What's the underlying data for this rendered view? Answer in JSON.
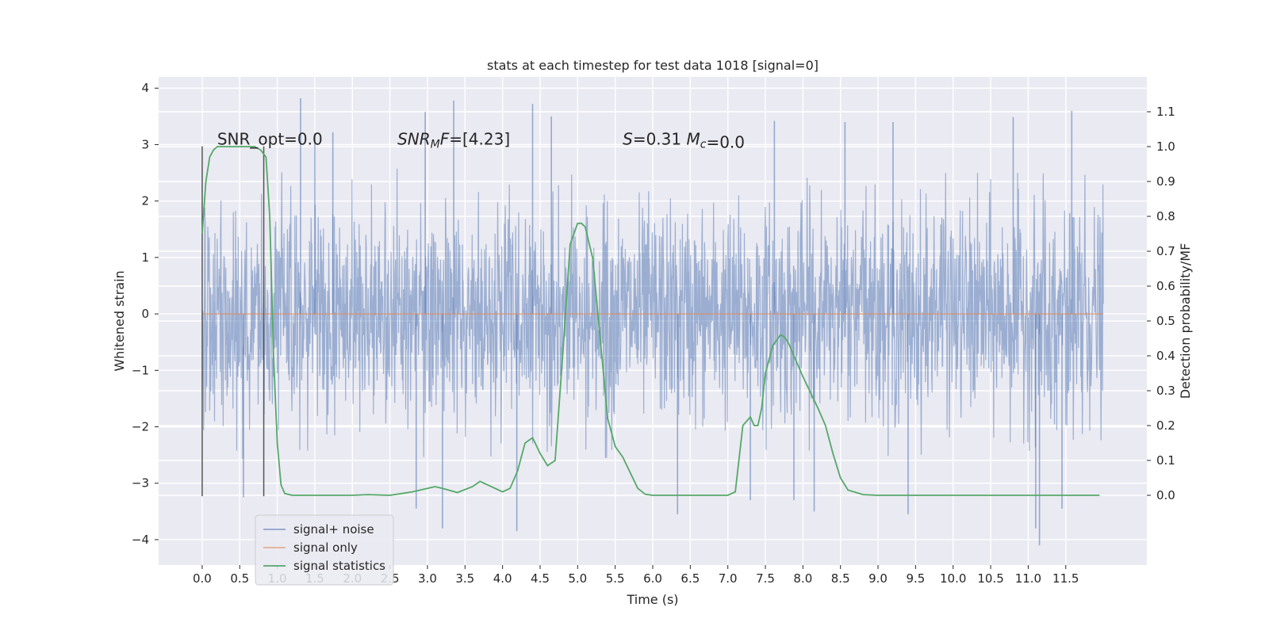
{
  "chart_data": {
    "type": "line",
    "title": "stats at each timestep for test data 1018 [signal=0]",
    "xlabel": "Time (s)",
    "ylabel": "Whitened strain",
    "ylabel_right": "Detection probability/MF",
    "xlim": [
      -0.58,
      12.58
    ],
    "ylim": [
      -4.45,
      4.2
    ],
    "ylim_right": [
      -0.2,
      1.2
    ],
    "x_ticks": [
      0.0,
      0.5,
      1.0,
      1.5,
      2.0,
      2.5,
      3.0,
      3.5,
      4.0,
      4.5,
      5.0,
      5.5,
      6.0,
      6.5,
      7.0,
      7.5,
      8.0,
      8.5,
      9.0,
      9.5,
      10.0,
      10.5,
      11.0,
      11.5
    ],
    "x_tick_labels": [
      "0.0",
      "0.5",
      "1.0",
      "1.5",
      "2.0",
      "2.5",
      "3.0",
      "3.5",
      "4.0",
      "4.5",
      "5.0",
      "5.5",
      "6.0",
      "6.5",
      "7.0",
      "7.5",
      "8.0",
      "8.5",
      "9.0",
      "9.5",
      "10.0",
      "10.5",
      "11.0",
      "11.5"
    ],
    "y_ticks": [
      -4,
      -3,
      -2,
      -1,
      0,
      1,
      2,
      3,
      4
    ],
    "y_tick_labels": [
      "−4",
      "−3",
      "−2",
      "−1",
      "0",
      "1",
      "2",
      "3",
      "4"
    ],
    "y_ticks_right": [
      0.0,
      0.1,
      0.2,
      0.3,
      0.4,
      0.5,
      0.6,
      0.7,
      0.8,
      0.9,
      1.0,
      1.1
    ],
    "y_tick_labels_right": [
      "0.0",
      "0.1",
      "0.2",
      "0.3",
      "0.4",
      "0.5",
      "0.6",
      "0.7",
      "0.8",
      "0.9",
      "1.0",
      "1.1"
    ],
    "grid": true,
    "legend_position": "lower-left",
    "series": [
      {
        "name": "signal+ noise",
        "axis": "left",
        "color": "#4c72b0",
        "x_range": [
          0.0,
          12.0
        ],
        "typical_range": [
          -2.2,
          2.4
        ],
        "peaks": [
          {
            "x": 1.31,
            "y": 3.82
          },
          {
            "x": 1.5,
            "y": 3.2
          },
          {
            "x": 1.74,
            "y": 3.22
          },
          {
            "x": 2.97,
            "y": 3.58
          },
          {
            "x": 3.35,
            "y": 3.78
          },
          {
            "x": 4.4,
            "y": 3.72
          },
          {
            "x": 4.65,
            "y": 3.5
          },
          {
            "x": 7.62,
            "y": 3.42
          },
          {
            "x": 8.56,
            "y": 3.4
          },
          {
            "x": 9.2,
            "y": 3.4
          },
          {
            "x": 10.8,
            "y": 3.49
          },
          {
            "x": 11.58,
            "y": 3.6
          }
        ],
        "troughs": [
          {
            "x": 0.55,
            "y": -3.25
          },
          {
            "x": 2.85,
            "y": -3.45
          },
          {
            "x": 3.2,
            "y": -3.8
          },
          {
            "x": 4.19,
            "y": -3.85
          },
          {
            "x": 6.33,
            "y": -3.55
          },
          {
            "x": 7.3,
            "y": -3.3
          },
          {
            "x": 7.88,
            "y": -3.3
          },
          {
            "x": 8.15,
            "y": -3.5
          },
          {
            "x": 9.4,
            "y": -3.55
          },
          {
            "x": 11.1,
            "y": -3.8
          },
          {
            "x": 11.15,
            "y": -4.1
          },
          {
            "x": 11.45,
            "y": -3.45
          }
        ]
      },
      {
        "name": "signal only",
        "axis": "left",
        "color": "#dd8452",
        "x": [
          0.0,
          12.0
        ],
        "y": [
          0.0,
          0.0
        ]
      },
      {
        "name": "signal statistics",
        "axis": "right",
        "color": "#55a868",
        "x": [
          0.0,
          0.05,
          0.1,
          0.15,
          0.2,
          0.3,
          0.5,
          0.7,
          0.78,
          0.85,
          0.9,
          0.95,
          1.0,
          1.05,
          1.1,
          1.2,
          1.5,
          2.0,
          2.2,
          2.5,
          2.8,
          3.0,
          3.1,
          3.2,
          3.4,
          3.6,
          3.7,
          3.8,
          4.0,
          4.1,
          4.2,
          4.3,
          4.4,
          4.5,
          4.6,
          4.7,
          4.8,
          4.9,
          5.0,
          5.05,
          5.1,
          5.2,
          5.3,
          5.4,
          5.5,
          5.6,
          5.7,
          5.8,
          5.9,
          6.0,
          6.2,
          6.5,
          7.0,
          7.1,
          7.2,
          7.3,
          7.35,
          7.4,
          7.45,
          7.5,
          7.6,
          7.7,
          7.75,
          7.8,
          7.9,
          8.0,
          8.2,
          8.3,
          8.4,
          8.5,
          8.6,
          8.8,
          9.0,
          10.0,
          11.0,
          11.95
        ],
        "y": [
          0.75,
          0.9,
          0.97,
          0.99,
          1.0,
          1.0,
          1.0,
          1.0,
          0.99,
          0.97,
          0.8,
          0.4,
          0.15,
          0.03,
          0.005,
          0.0,
          0.0,
          0.0,
          0.002,
          0.0,
          0.01,
          0.02,
          0.025,
          0.02,
          0.008,
          0.025,
          0.04,
          0.03,
          0.01,
          0.02,
          0.07,
          0.15,
          0.165,
          0.12,
          0.085,
          0.1,
          0.4,
          0.72,
          0.78,
          0.78,
          0.77,
          0.68,
          0.45,
          0.22,
          0.14,
          0.11,
          0.065,
          0.02,
          0.003,
          0.0,
          0.0,
          0.0,
          0.0,
          0.01,
          0.2,
          0.225,
          0.2,
          0.2,
          0.25,
          0.35,
          0.43,
          0.46,
          0.455,
          0.44,
          0.39,
          0.34,
          0.25,
          0.2,
          0.12,
          0.05,
          0.015,
          0.002,
          0.0,
          0.0,
          0.0,
          0.0
        ]
      }
    ],
    "vertical_lines": [
      0.0,
      0.82
    ],
    "annotations": [
      {
        "x": 0.2,
        "y": 3.0,
        "text": "SNR_opt=0.0"
      },
      {
        "x": 2.6,
        "y": 3.0,
        "text": "SNR",
        "sub": "M",
        "tail": "F=[4.23]",
        "italic": true
      },
      {
        "x": 5.6,
        "y": 3.0,
        "parts": [
          {
            "text": "S",
            "italic": true
          },
          {
            "text": "=0.31   "
          },
          {
            "text": "M",
            "italic": true
          },
          {
            "text": "c",
            "sub": true,
            "italic": true
          },
          {
            "text": "=0.0"
          }
        ]
      }
    ],
    "colors": {
      "background": "#eaeaf2",
      "grid": "#ffffff",
      "text": "#262626",
      "vline": "#555555"
    }
  }
}
